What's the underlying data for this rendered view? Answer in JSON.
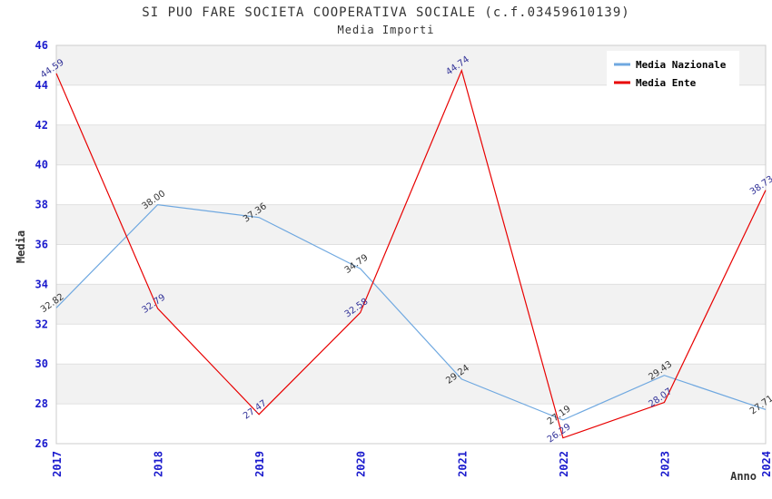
{
  "header": {
    "title": "SI PUO FARE SOCIETA COOPERATIVA SOCIALE (c.f.03459610139)",
    "subtitle": "Media Importi"
  },
  "chart_data": {
    "type": "line",
    "title": "SI PUO FARE SOCIETA COOPERATIVA SOCIALE (c.f.03459610139)",
    "subtitle": "Media Importi",
    "categories": [
      "2017",
      "2018",
      "2019",
      "2020",
      "2021",
      "2022",
      "2023",
      "2024"
    ],
    "series": [
      {
        "name": "Media Nazionale",
        "color": "#6FA8E0",
        "label_color": "#333333",
        "values": [
          32.82,
          38.0,
          37.36,
          34.79,
          29.24,
          27.19,
          29.43,
          27.71
        ]
      },
      {
        "name": "Media Ente",
        "color": "#E80000",
        "label_color": "#333399",
        "values": [
          44.59,
          32.79,
          27.47,
          32.58,
          44.74,
          26.29,
          28.07,
          38.73
        ]
      }
    ],
    "xlabel": "Anno",
    "ylabel": "Media",
    "ylim": [
      26,
      46
    ],
    "ytick_step": 2,
    "grid": true,
    "banded_background": true,
    "legend_position": "top-right"
  },
  "theme": {
    "tick_color": "#1A1ACD",
    "band_color": "#F2F2F2",
    "grid_color": "#E0E0E0",
    "border_color": "#CCCCCC",
    "title_color": "#333333",
    "axis_title_color": "#333333",
    "legend_bg": "#FFFFFF",
    "legend_text_color": "#000000",
    "background": "#FFFFFF"
  }
}
